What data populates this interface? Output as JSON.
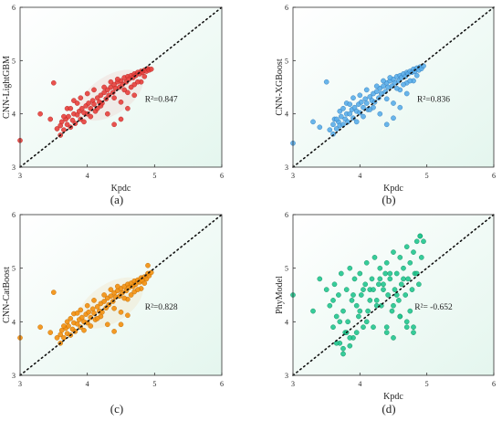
{
  "chart_data": [
    {
      "type": "scatter",
      "panel_label": "(a)",
      "xlabel": "Kpdc",
      "ylabel": "CNN-LightGBM",
      "annotation": "R²=0.847",
      "xlim": [
        3,
        6
      ],
      "ylim": [
        3,
        6
      ],
      "x_ticks": [
        "3",
        "4",
        "5",
        "6"
      ],
      "y_ticks": [
        "3",
        "4",
        "5",
        "6"
      ],
      "point_color": "#e8403c",
      "point_edge": "#b52220",
      "highlight_color": "#b07a2a",
      "background_color": "#e4f6ee",
      "identity_line": true,
      "grid": false,
      "series": [
        {
          "x": [
            3.55,
            3.6,
            3.62,
            3.65,
            3.68,
            3.7,
            3.72,
            3.75,
            3.78,
            3.8,
            3.82,
            3.85,
            3.88,
            3.9,
            3.92,
            3.95,
            3.98,
            4.0,
            4.02,
            4.05,
            4.08,
            4.1,
            4.12,
            4.15,
            4.18,
            4.2,
            4.22,
            4.25,
            4.28,
            4.3,
            4.32,
            4.35,
            4.38,
            4.4,
            4.42,
            4.45,
            4.48,
            4.5,
            4.52,
            4.55,
            4.58,
            4.6,
            4.62,
            4.65,
            4.68,
            4.7,
            4.72,
            4.75,
            4.78,
            4.8,
            4.82,
            4.85,
            4.88,
            4.9,
            4.92,
            4.95,
            3.7,
            3.8,
            3.9,
            4.0,
            4.1,
            4.2,
            4.3,
            4.4,
            4.5,
            4.6,
            4.7,
            4.8,
            3.65,
            3.75,
            3.85,
            3.95,
            4.05,
            4.15,
            4.25,
            4.35,
            4.45,
            4.55,
            4.65,
            4.75,
            4.85,
            3.6,
            3.5,
            3.45,
            3.3,
            3.0,
            4.4,
            4.5,
            4.6,
            4.7
          ],
          "y": [
            3.72,
            3.78,
            3.85,
            3.7,
            3.9,
            3.8,
            3.95,
            3.75,
            3.88,
            4.0,
            3.82,
            3.98,
            4.05,
            3.9,
            4.1,
            4.02,
            4.15,
            4.0,
            4.2,
            4.1,
            4.25,
            4.18,
            4.05,
            4.3,
            4.22,
            4.35,
            4.2,
            4.4,
            4.28,
            4.45,
            4.35,
            4.5,
            4.4,
            4.55,
            4.48,
            4.6,
            4.5,
            4.62,
            4.55,
            4.68,
            4.6,
            4.7,
            4.65,
            4.72,
            4.68,
            4.75,
            4.72,
            4.78,
            4.75,
            4.8,
            4.78,
            4.82,
            4.8,
            4.85,
            4.82,
            4.84,
            4.1,
            4.25,
            4.3,
            4.38,
            4.45,
            4.15,
            4.0,
            4.3,
            4.22,
            4.4,
            4.55,
            4.6,
            3.95,
            4.1,
            4.2,
            3.85,
            3.95,
            4.1,
            4.5,
            4.6,
            4.65,
            4.45,
            4.5,
            4.6,
            4.7,
            3.6,
            4.58,
            3.9,
            4.0,
            3.5,
            3.8,
            3.9,
            4.1,
            4.35
          ]
        }
      ]
    },
    {
      "type": "scatter",
      "panel_label": "(b)",
      "xlabel": "Kpdc",
      "ylabel": "CNN-XGBoost",
      "annotation": "R²=0.836",
      "xlim": [
        3,
        6
      ],
      "ylim": [
        3,
        6
      ],
      "x_ticks": [
        "3",
        "4",
        "5",
        "6"
      ],
      "y_ticks": [
        "3",
        "4",
        "5",
        "6"
      ],
      "point_color": "#5aaeea",
      "point_edge": "#2e78b8",
      "background_color": "#e4f6ee",
      "identity_line": true,
      "grid": false,
      "series": [
        {
          "x": [
            3.55,
            3.6,
            3.62,
            3.65,
            3.68,
            3.7,
            3.72,
            3.75,
            3.78,
            3.8,
            3.82,
            3.85,
            3.88,
            3.9,
            3.92,
            3.95,
            3.98,
            4.0,
            4.02,
            4.05,
            4.08,
            4.1,
            4.12,
            4.15,
            4.18,
            4.2,
            4.22,
            4.25,
            4.28,
            4.3,
            4.32,
            4.35,
            4.38,
            4.4,
            4.42,
            4.45,
            4.48,
            4.5,
            4.52,
            4.55,
            4.58,
            4.6,
            4.62,
            4.65,
            4.68,
            4.7,
            4.72,
            4.75,
            4.78,
            4.8,
            4.82,
            4.85,
            4.88,
            4.9,
            4.92,
            4.95,
            3.7,
            3.8,
            3.9,
            4.0,
            4.1,
            4.2,
            4.3,
            4.4,
            4.5,
            4.6,
            4.7,
            4.8,
            3.65,
            3.75,
            3.85,
            3.95,
            4.05,
            4.15,
            4.25,
            4.35,
            4.45,
            4.55,
            4.65,
            4.75,
            4.85,
            3.6,
            3.5,
            3.4,
            3.3,
            3.0,
            4.4,
            4.5,
            4.6,
            4.7
          ],
          "y": [
            3.7,
            3.8,
            3.9,
            3.72,
            3.85,
            3.78,
            3.95,
            3.8,
            3.9,
            4.0,
            3.85,
            4.0,
            4.08,
            3.92,
            4.12,
            4.05,
            4.18,
            4.02,
            4.22,
            4.12,
            4.28,
            4.2,
            4.08,
            4.32,
            4.25,
            4.38,
            4.22,
            4.42,
            4.3,
            4.48,
            4.38,
            4.52,
            4.42,
            4.58,
            4.5,
            4.62,
            4.52,
            4.65,
            4.58,
            4.7,
            4.62,
            4.72,
            4.68,
            4.75,
            4.7,
            4.78,
            4.75,
            4.8,
            4.78,
            4.84,
            4.8,
            4.86,
            4.82,
            4.88,
            4.85,
            4.9,
            4.05,
            4.2,
            4.3,
            4.35,
            4.45,
            4.12,
            4.0,
            4.28,
            4.2,
            4.45,
            4.58,
            4.62,
            3.9,
            4.1,
            4.18,
            3.85,
            3.95,
            4.08,
            4.52,
            4.62,
            4.68,
            4.48,
            4.55,
            4.62,
            4.72,
            3.62,
            4.6,
            3.75,
            3.85,
            3.45,
            3.8,
            3.92,
            4.12,
            4.38
          ]
        }
      ]
    },
    {
      "type": "scatter",
      "panel_label": "(c)",
      "xlabel": "",
      "ylabel": "CNN-CatBoost",
      "annotation": "R²=0.828",
      "xlim": [
        3,
        6
      ],
      "ylim": [
        3,
        6
      ],
      "x_ticks": [
        "3",
        "4",
        "5",
        "6"
      ],
      "y_ticks": [
        "3",
        "4",
        "5",
        "6"
      ],
      "point_color": "#f4900e",
      "point_edge": "#c06a00",
      "highlight_color": "#c8a018",
      "background_color": "#e4f6ee",
      "identity_line": true,
      "grid": false,
      "series": [
        {
          "x": [
            3.55,
            3.6,
            3.62,
            3.65,
            3.68,
            3.7,
            3.72,
            3.75,
            3.78,
            3.8,
            3.82,
            3.85,
            3.88,
            3.9,
            3.92,
            3.95,
            3.98,
            4.0,
            4.02,
            4.05,
            4.08,
            4.1,
            4.12,
            4.15,
            4.18,
            4.2,
            4.22,
            4.25,
            4.28,
            4.3,
            4.32,
            4.35,
            4.38,
            4.4,
            4.42,
            4.45,
            4.48,
            4.5,
            4.52,
            4.55,
            4.58,
            4.6,
            4.62,
            4.65,
            4.68,
            4.7,
            4.72,
            4.75,
            4.78,
            4.8,
            4.82,
            4.85,
            4.88,
            4.9,
            4.92,
            4.95,
            3.7,
            3.8,
            3.9,
            4.0,
            4.1,
            4.2,
            4.3,
            4.4,
            4.5,
            4.6,
            4.7,
            4.8,
            3.65,
            3.75,
            3.85,
            3.95,
            4.05,
            4.15,
            4.25,
            4.35,
            4.45,
            4.55,
            4.65,
            4.75,
            4.85,
            3.6,
            3.5,
            3.45,
            3.3,
            3.0,
            4.4,
            4.5,
            4.6,
            4.9
          ],
          "y": [
            3.7,
            3.76,
            3.84,
            3.7,
            3.88,
            3.78,
            3.92,
            3.75,
            3.86,
            3.98,
            3.82,
            3.96,
            4.04,
            3.9,
            4.08,
            4.0,
            4.14,
            3.98,
            4.18,
            4.08,
            4.24,
            4.16,
            4.04,
            4.28,
            4.2,
            4.34,
            4.18,
            4.38,
            4.26,
            4.44,
            4.32,
            4.48,
            4.38,
            4.54,
            4.46,
            4.58,
            4.48,
            4.62,
            4.54,
            4.66,
            4.58,
            4.7,
            4.64,
            4.72,
            4.66,
            4.76,
            4.7,
            4.78,
            4.74,
            4.82,
            4.76,
            4.84,
            4.8,
            4.9,
            4.86,
            4.92,
            4.0,
            4.15,
            4.22,
            4.3,
            4.4,
            4.1,
            3.95,
            4.25,
            4.18,
            4.42,
            4.56,
            4.62,
            3.92,
            4.06,
            4.16,
            3.84,
            3.92,
            4.06,
            4.5,
            4.6,
            4.66,
            4.44,
            4.5,
            4.6,
            4.72,
            3.6,
            4.55,
            3.8,
            3.9,
            3.7,
            3.82,
            3.95,
            4.12,
            5.05
          ]
        }
      ]
    },
    {
      "type": "scatter",
      "panel_label": "(d)",
      "xlabel": "Kpdc",
      "ylabel": "PhyModel",
      "annotation": "R²= -0.652",
      "xlim": [
        3,
        6
      ],
      "ylim": [
        3,
        6
      ],
      "x_ticks": [
        "3",
        "4",
        "5",
        "6"
      ],
      "y_ticks": [
        "3",
        "4",
        "5",
        "6"
      ],
      "point_color": "#22c890",
      "point_edge": "#0e8a5e",
      "background_color": "#e4f6ee",
      "identity_line": true,
      "grid": false,
      "series": [
        {
          "x": [
            3.55,
            3.6,
            3.62,
            3.65,
            3.68,
            3.7,
            3.72,
            3.75,
            3.78,
            3.8,
            3.82,
            3.85,
            3.88,
            3.9,
            3.92,
            3.95,
            3.98,
            4.0,
            4.02,
            4.05,
            4.08,
            4.1,
            4.12,
            4.15,
            4.18,
            4.2,
            4.22,
            4.25,
            4.28,
            4.3,
            4.32,
            4.35,
            4.38,
            4.4,
            4.42,
            4.45,
            4.48,
            4.5,
            4.52,
            4.55,
            4.58,
            4.6,
            4.62,
            4.65,
            4.68,
            4.7,
            4.72,
            4.75,
            4.78,
            4.8,
            4.82,
            4.85,
            4.88,
            4.9,
            4.92,
            4.95,
            3.7,
            3.8,
            3.9,
            4.0,
            4.1,
            4.2,
            4.3,
            4.4,
            4.5,
            4.6,
            4.7,
            4.8,
            3.65,
            3.75,
            3.85,
            3.95,
            4.05,
            4.15,
            4.25,
            4.35,
            4.45,
            4.55,
            4.65,
            4.75,
            4.85,
            3.6,
            3.5,
            3.4,
            3.3,
            3.0,
            4.4,
            4.5,
            4.6,
            4.9,
            4.7,
            4.8,
            3.75,
            3.85
          ],
          "y": [
            4.3,
            3.9,
            4.7,
            4.1,
            4.5,
            3.6,
            4.9,
            4.2,
            3.8,
            4.6,
            4.0,
            5.0,
            4.4,
            3.7,
            4.8,
            4.3,
            4.1,
            4.9,
            4.5,
            3.9,
            4.7,
            5.1,
            4.2,
            4.6,
            4.8,
            3.9,
            5.2,
            4.4,
            4.7,
            5.0,
            4.3,
            4.6,
            4.9,
            5.1,
            4.5,
            4.8,
            4.2,
            5.3,
            4.6,
            4.9,
            4.4,
            5.2,
            4.7,
            5.0,
            4.5,
            5.4,
            4.8,
            5.1,
            4.6,
            5.3,
            4.9,
            5.5,
            4.7,
            5.6,
            5.2,
            5.5,
            4.0,
            3.8,
            4.5,
            4.2,
            4.0,
            4.6,
            4.8,
            3.9,
            4.3,
            4.1,
            4.0,
            3.9,
            3.6,
            3.5,
            3.7,
            3.8,
            4.6,
            4.4,
            4.3,
            4.7,
            4.9,
            4.5,
            4.8,
            4.2,
            4.9,
            4.4,
            4.6,
            4.8,
            4.2,
            4.5,
            3.8,
            3.7,
            4.1,
            5.6,
            3.9,
            3.8,
            3.4,
            3.55
          ]
        }
      ]
    }
  ]
}
